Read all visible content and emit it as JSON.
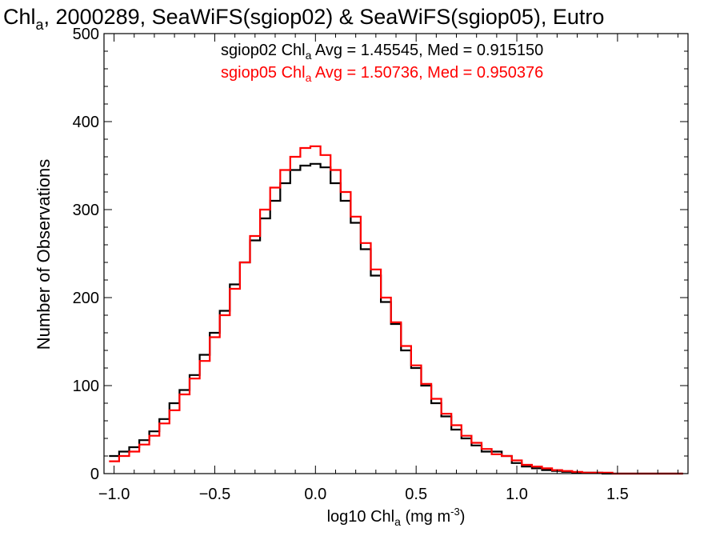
{
  "chart_data": {
    "type": "line",
    "title": {
      "main": "Chl",
      "sub": "a",
      "rest": ", 2000289, SeaWiFS(sgiop02) & SeaWiFS(sgiop05), Eutro"
    },
    "xlabel": {
      "pre": "log10 Chl",
      "sub": "a",
      "mid": " (mg m",
      "sup": "-3",
      "post": ")"
    },
    "ylabel": "Number of Observations",
    "xlim": [
      -1.05,
      1.85
    ],
    "ylim": [
      0,
      500
    ],
    "x_ticks": [
      -1.0,
      -0.5,
      0.0,
      0.5,
      1.0,
      1.5
    ],
    "x_tick_labels": [
      "−1.0",
      "−0.5",
      "0.0",
      "0.5",
      "1.0",
      "1.5"
    ],
    "y_ticks": [
      0,
      100,
      200,
      300,
      400,
      500
    ],
    "y_tick_labels": [
      "0",
      "100",
      "200",
      "300",
      "400",
      "500"
    ],
    "grid": false,
    "annotations": [
      {
        "pre": "sgiop02 Chl",
        "sub": "a",
        "post": " Avg = 1.45545, Med = 0.915150",
        "color": "#000000"
      },
      {
        "pre": "sgiop05 Chl",
        "sub": "a",
        "post": " Avg = 1.50736, Med = 0.950376",
        "color": "#ff0000"
      }
    ],
    "x": [
      -1.0,
      -0.95,
      -0.9,
      -0.85,
      -0.8,
      -0.75,
      -0.7,
      -0.65,
      -0.6,
      -0.55,
      -0.5,
      -0.45,
      -0.4,
      -0.35,
      -0.3,
      -0.25,
      -0.2,
      -0.15,
      -0.1,
      -0.05,
      0.0,
      0.05,
      0.1,
      0.15,
      0.2,
      0.25,
      0.3,
      0.35,
      0.4,
      0.45,
      0.5,
      0.55,
      0.6,
      0.65,
      0.7,
      0.75,
      0.8,
      0.85,
      0.9,
      0.95,
      1.0,
      1.05,
      1.1,
      1.15,
      1.2,
      1.25,
      1.3,
      1.35,
      1.4,
      1.45,
      1.5,
      1.55,
      1.6,
      1.65,
      1.7,
      1.75,
      1.8
    ],
    "series": [
      {
        "name": "sgiop02",
        "color": "#000000",
        "values": [
          20,
          25,
          30,
          38,
          48,
          62,
          80,
          95,
          112,
          135,
          160,
          185,
          215,
          240,
          265,
          290,
          310,
          330,
          345,
          350,
          352,
          348,
          330,
          310,
          285,
          255,
          225,
          195,
          170,
          140,
          120,
          100,
          80,
          65,
          50,
          40,
          32,
          25,
          25,
          20,
          12,
          8,
          6,
          4,
          3,
          2,
          1,
          1,
          1,
          0,
          0,
          0,
          0,
          0,
          0,
          0,
          0
        ]
      },
      {
        "name": "sgiop05",
        "color": "#ff0000",
        "values": [
          14,
          20,
          25,
          33,
          43,
          57,
          72,
          90,
          108,
          128,
          155,
          180,
          210,
          240,
          270,
          300,
          325,
          345,
          360,
          370,
          372,
          362,
          345,
          320,
          292,
          262,
          232,
          200,
          172,
          145,
          123,
          102,
          85,
          68,
          55,
          43,
          35,
          28,
          22,
          20,
          15,
          10,
          8,
          6,
          4,
          3,
          2,
          1,
          1,
          1,
          0,
          0,
          0,
          0,
          0,
          0,
          0
        ]
      }
    ]
  }
}
